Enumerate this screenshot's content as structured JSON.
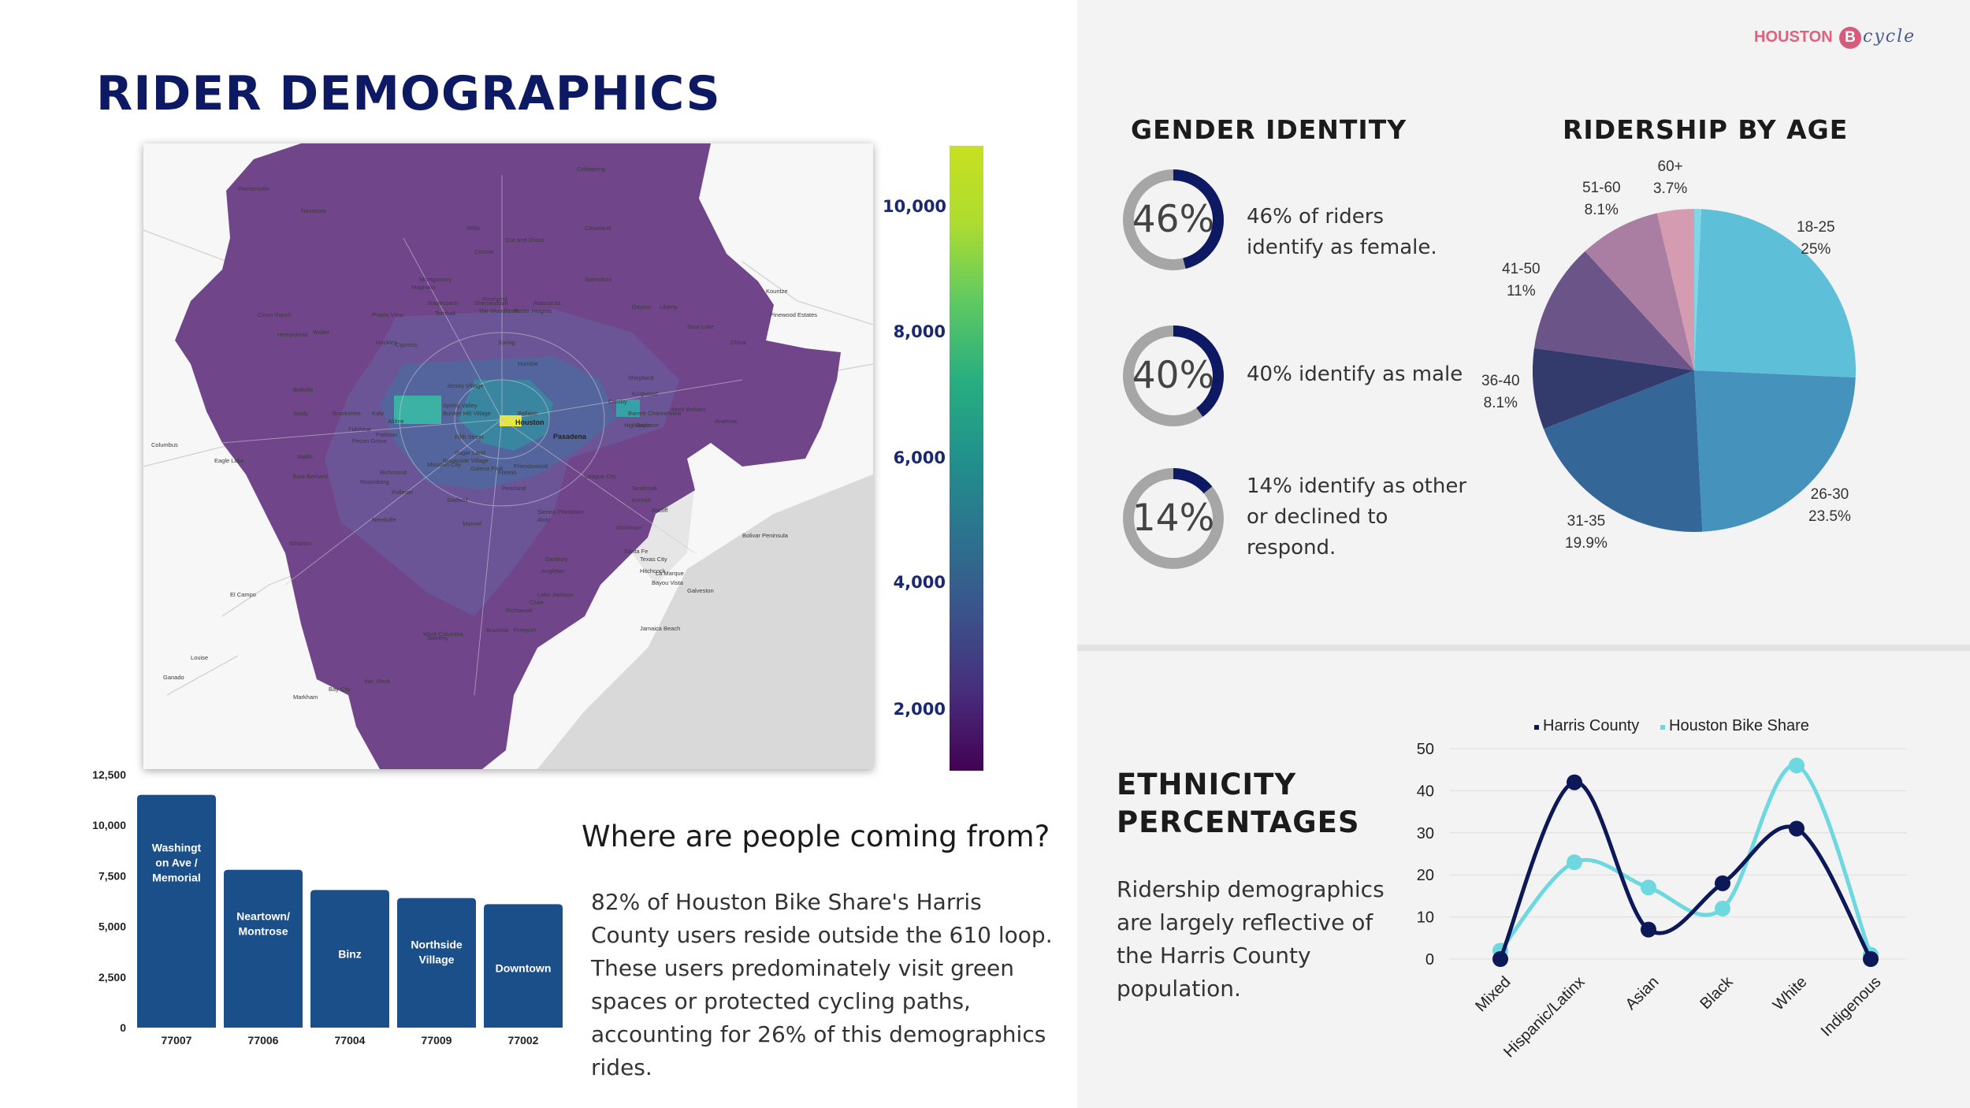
{
  "page_title": "RIDER DEMOGRAPHICS",
  "logo": {
    "word": "HOUSTON",
    "letter": "B",
    "script": "cycle"
  },
  "colors": {
    "navy": "#0d1a63",
    "panel": "#f3f3f3",
    "bar": "#1a4f8a",
    "harris": "#0c1858",
    "bike_share": "#6ed8e0",
    "donut_ring": "#0d1a63",
    "donut_track": "#a6a6a6"
  },
  "map": {
    "colorbar_labels": [
      "10,000",
      "8,000",
      "6,000",
      "4,000",
      "2,000"
    ],
    "place_labels": [
      "Houston",
      "Pasadena",
      "Katy",
      "Sugar Land",
      "Pearland",
      "League City",
      "Baytown",
      "Cypress",
      "Humble",
      "Spring",
      "Tomball",
      "Magnolia",
      "Conroe",
      "Willis",
      "Cleveland",
      "Dayton",
      "Liberty",
      "Galveston",
      "Texas City",
      "Friendswood",
      "Rosenberg",
      "Richmond",
      "Missouri City",
      "Alvin",
      "Angleton",
      "Freeport",
      "Brazoria",
      "Sweeny",
      "West Columbia",
      "Danbury",
      "Hockley",
      "Waller",
      "Hempstead",
      "Bellville",
      "Sealy",
      "Brookshire",
      "Fulshear",
      "Wallis",
      "East Bernard",
      "Needville",
      "Wharton",
      "El Campo",
      "Eagle Lake",
      "Columbus",
      "Navasota",
      "Montgomery",
      "Cut and Shoot",
      "Splendora",
      "Porter Heights",
      "Shenandoah",
      "The Woodlands",
      "Pinehurst",
      "Stagecoach",
      "Sour Lake",
      "China",
      "Kountze",
      "Pinewood Estates",
      "Mont Belvieu",
      "Anahuac",
      "Seabrook",
      "Kemah",
      "Bacliff",
      "Dickinson",
      "Santa Fe",
      "Hitchcock",
      "La Marque",
      "Bayou Vista",
      "Jamaica Beach",
      "Manvel",
      "Fresno",
      "Lake Jackson",
      "Clute",
      "Richwood",
      "Bay City",
      "Van Vleck",
      "Markham",
      "Louise",
      "Ganado",
      "Bolivar Peninsula",
      "Crosby",
      "Barrett",
      "Highlands",
      "Channelview",
      "Jersey Village",
      "Spring Valley",
      "Bunker Hill Village",
      "Bellaire",
      "Galena Park",
      "Stafford",
      "Sienna Plantation",
      "Brookside Village",
      "Fifth Street",
      "Pecan Grove",
      "Aldine",
      "Atascocita",
      "Kingwood",
      "Shepherd",
      "Coldspring",
      "Plantersville",
      "Prairie View",
      "Cinco Ranch",
      "Pattison",
      "Pullman"
    ]
  },
  "zip_bars": {
    "y_ticks": [
      "12,500",
      "10,000",
      "7,500",
      "5,000",
      "2,500",
      "0"
    ],
    "ymax": 12500,
    "bars": [
      {
        "zip": "77007",
        "neighborhood_lines": [
          "Washingt",
          "on Ave /",
          "Memorial"
        ],
        "value": 11500
      },
      {
        "zip": "77006",
        "neighborhood_lines": [
          "Neartown/",
          "Montrose"
        ],
        "value": 7800
      },
      {
        "zip": "77004",
        "neighborhood_lines": [
          "Binz"
        ],
        "value": 6800
      },
      {
        "zip": "77009",
        "neighborhood_lines": [
          "Northside",
          "Village"
        ],
        "value": 6400
      },
      {
        "zip": "77002",
        "neighborhood_lines": [
          "Downtown"
        ],
        "value": 6100
      }
    ]
  },
  "where": {
    "heading": "Where are people coming from?",
    "paragraph": "82% of Houston Bike Share's Harris County users reside outside the 610 loop. These users predominately visit green spaces or protected cycling paths, accounting for 26% of this demographics rides."
  },
  "gender": {
    "heading": "GENDER IDENTITY",
    "items": [
      {
        "pct_label": "46%",
        "fraction": 0.46,
        "text": "46% of riders identify as female."
      },
      {
        "pct_label": "40%",
        "fraction": 0.4,
        "text": "40% identify as male"
      },
      {
        "pct_label": "14%",
        "fraction": 0.14,
        "text": "14% identify as other or declined to respond."
      }
    ]
  },
  "age": {
    "heading": "RIDERSHIP BY AGE",
    "slices": [
      {
        "label": "18-25",
        "pct": "25%",
        "value": 25.0,
        "color": "#5ec0d8"
      },
      {
        "label": "26-30",
        "pct": "23.5%",
        "value": 23.5,
        "color": "#4592bd"
      },
      {
        "label": "31-35",
        "pct": "19.9%",
        "value": 19.9,
        "color": "#356698"
      },
      {
        "label": "36-40",
        "pct": "8.1%",
        "value": 8.1,
        "color": "#333a6c"
      },
      {
        "label": "41-50",
        "pct": "11%",
        "value": 11.0,
        "color": "#6b5487"
      },
      {
        "label": "51-60",
        "pct": "8.1%",
        "value": 8.1,
        "color": "#a97ea2"
      },
      {
        "label": "60+",
        "pct": "3.7%",
        "value": 3.7,
        "color": "#d59bb1"
      },
      {
        "label": "",
        "pct": "",
        "value": 0.7,
        "color": "#7fd6e6"
      }
    ]
  },
  "ethnicity": {
    "heading_lines": [
      "ETHNICITY",
      "PERCENTAGES"
    ],
    "paragraph": "Ridership demographics are largely reflective of the Harris County population.",
    "chart_data": {
      "type": "line",
      "categories": [
        "Mixed",
        "Hispanic/Latinx",
        "Asian",
        "Black",
        "White",
        "Indigenous"
      ],
      "ylim": [
        0,
        50
      ],
      "y_ticks": [
        "50",
        "40",
        "30",
        "20",
        "10",
        "0"
      ],
      "series": [
        {
          "name": "Harris County",
          "values": [
            0,
            42,
            7,
            18,
            31,
            0
          ],
          "color": "#0c1858"
        },
        {
          "name": "Houston Bike Share",
          "values": [
            2,
            23,
            17,
            12,
            46,
            1
          ],
          "color": "#6ed8e0"
        }
      ],
      "legend": "top"
    }
  }
}
